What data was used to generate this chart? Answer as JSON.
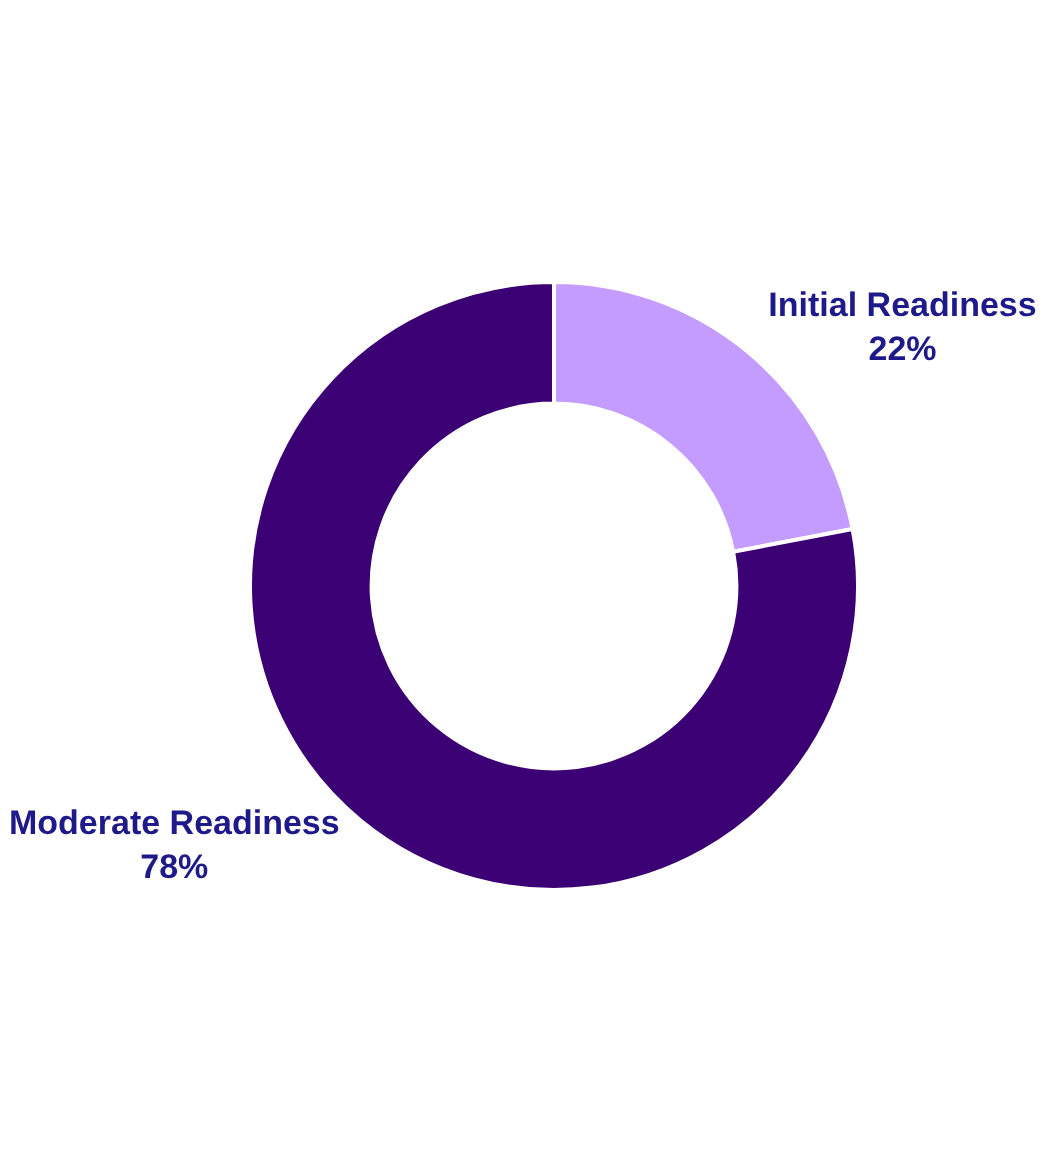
{
  "chart_data": {
    "type": "donut",
    "categories": [
      "Initial Readiness",
      "Moderate Readiness"
    ],
    "values": [
      22,
      78
    ],
    "colors": [
      "#c49cff",
      "#3b0073"
    ],
    "value_labels": [
      "22%",
      "78%"
    ],
    "legend": false
  }
}
